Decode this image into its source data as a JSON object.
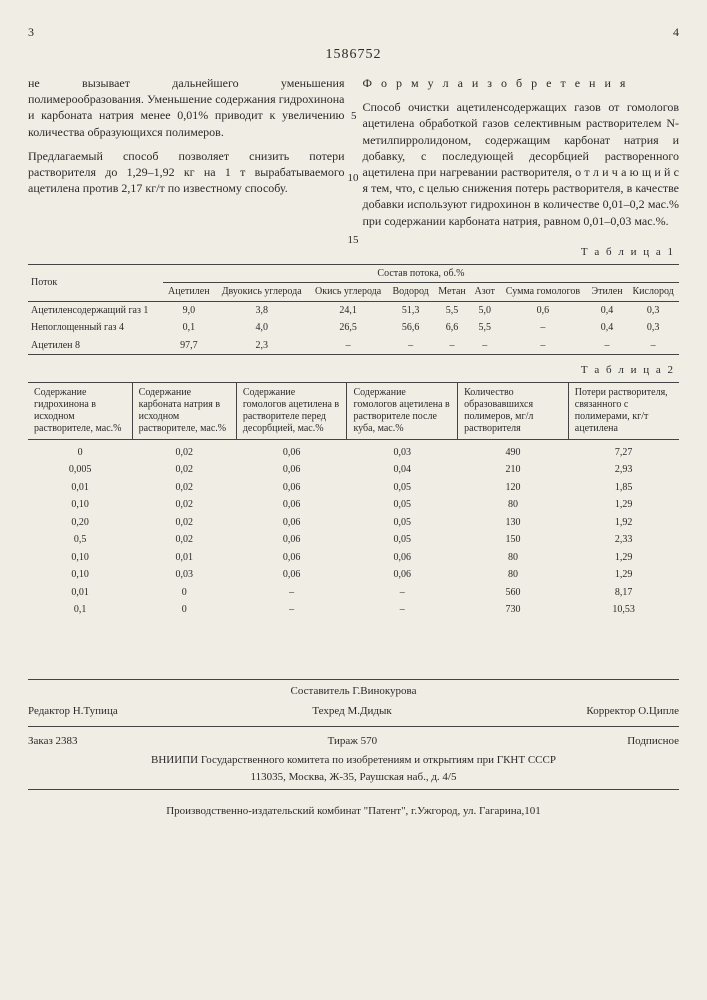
{
  "page": {
    "left_num": "3",
    "right_num": "4",
    "doc_number": "1586752"
  },
  "left_col": {
    "p1": "не вызывает дальнейшего уменьшения полимерообразования. Уменьшение содержания гидрохинона и карбоната натрия менее 0,01% приводит к увеличению количества образующихся полимеров.",
    "p2": "Предлагаемый способ позволяет снизить потери растворителя до 1,29–1,92 кг на 1 т вырабатываемого ацетилена против 2,17 кг/т по известному способу.",
    "ref5": "5",
    "ref10": "10",
    "ref15": "15"
  },
  "right_col": {
    "title": "Ф о р м у л а   и з о б р е т е н и я",
    "p1": "Способ очистки ацетиленсодержащих газов от гомологов ацетилена обработкой газов селективным растворителем N-метилпирролидоном, содержащим карбонат натрия и добавку, с последующей десорбцией растворенного ацетилена при нагревании растворителя, о т л и ч а ю щ и й с я  тем, что, с целью снижения потерь растворителя, в качестве добавки используют гидрохинон в количестве 0,01–0,2 мас.% при содержании карбоната натрия, равном 0,01–0,03 мас.%."
  },
  "table1": {
    "label": "Т а б л и ц а 1",
    "stream_header": "Поток",
    "group_header": "Состав потока, об.%",
    "cols": [
      "Ацетилен",
      "Двуокись углерода",
      "Окись углерода",
      "Водород",
      "Метан",
      "Азот",
      "Сумма гомологов",
      "Этилен",
      "Кислород"
    ],
    "rows": [
      {
        "label": "Ацетиленсодержащий газ 1",
        "vals": [
          "9,0",
          "3,8",
          "24,1",
          "51,3",
          "5,5",
          "5,0",
          "0,6",
          "0,4",
          "0,3"
        ]
      },
      {
        "label": "Непоглощенный газ 4",
        "vals": [
          "0,1",
          "4,0",
          "26,5",
          "56,6",
          "6,6",
          "5,5",
          "–",
          "0,4",
          "0,3"
        ]
      },
      {
        "label": "Ацетилен 8",
        "vals": [
          "97,7",
          "2,3",
          "–",
          "–",
          "–",
          "–",
          "–",
          "–",
          "–"
        ]
      }
    ]
  },
  "table2": {
    "label": "Т а б л и ц а 2",
    "headers": [
      "Содержание гидрохинона в исходном растворителе, мас.%",
      "Содержание карбоната натрия в исходном растворителе, мас.%",
      "Содержание гомологов ацетилена в растворителе перед десорбцией, мас.%",
      "Содержание гомологов ацетилена в растворителе после куба, мас.%",
      "Количество образовавшихся полимеров, мг/л растворителя",
      "Потери растворителя, связанного с полимерами, кг/т ацетилена"
    ],
    "rows": [
      [
        "0",
        "0,02",
        "0,06",
        "0,03",
        "490",
        "7,27"
      ],
      [
        "0,005",
        "0,02",
        "0,06",
        "0,04",
        "210",
        "2,93"
      ],
      [
        "0,01",
        "0,02",
        "0,06",
        "0,05",
        "120",
        "1,85"
      ],
      [
        "0,10",
        "0,02",
        "0,06",
        "0,05",
        "80",
        "1,29"
      ],
      [
        "0,20",
        "0,02",
        "0,06",
        "0,05",
        "130",
        "1,92"
      ],
      [
        "0,5",
        "0,02",
        "0,06",
        "0,05",
        "150",
        "2,33"
      ],
      [
        "0,10",
        "0,01",
        "0,06",
        "0,06",
        "80",
        "1,29"
      ],
      [
        "0,10",
        "0,03",
        "0,06",
        "0,06",
        "80",
        "1,29"
      ],
      [
        "0,01",
        "0",
        "–",
        "–",
        "560",
        "8,17"
      ],
      [
        "0,1",
        "0",
        "–",
        "–",
        "730",
        "10,53"
      ]
    ]
  },
  "footer": {
    "compiler": "Составитель Г.Винокурова",
    "editor": "Редактор Н.Тупица",
    "tech": "Техред М.Дидык",
    "corrector": "Корректор О.Ципле",
    "order": "Заказ 2383",
    "tirazh": "Тираж   570",
    "sub": "Подписное",
    "org1": "ВНИИПИ Государственного комитета по изобретениям и открытиям при ГКНТ СССР",
    "addr1": "113035, Москва, Ж-35, Раушская наб., д. 4/5",
    "org2": "Производственно-издательский комбинат \"Патент\", г.Ужгород, ул. Гагарина,101"
  }
}
